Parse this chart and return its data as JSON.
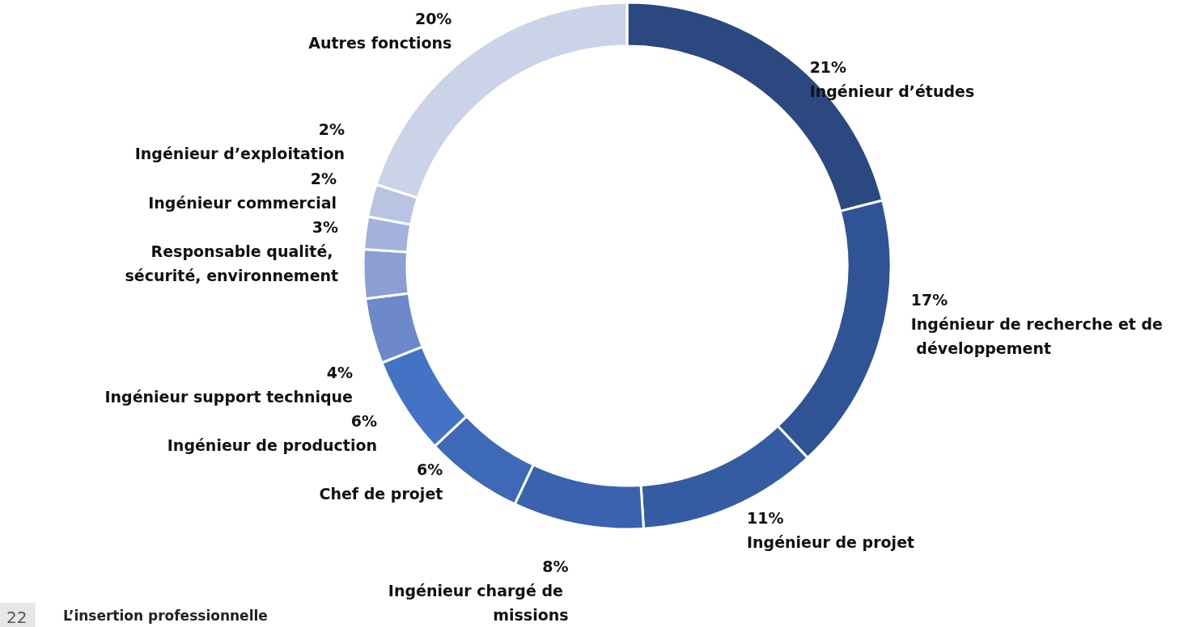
{
  "chart_data": {
    "type": "donut",
    "categories": [
      "Ingénieur d’études",
      "Ingénieur de recherche et de développement",
      "Ingénieur de projet",
      "Ingénieur chargé de missions",
      "Chef de projet",
      "Ingénieur de production",
      "Ingénieur support technique",
      "Responsable qualité, sécurité, environnement",
      "Ingénieur commercial",
      "Ingénieur d’exploitation",
      "Autres fonctions"
    ],
    "values": [
      21,
      17,
      11,
      8,
      6,
      6,
      4,
      3,
      2,
      2,
      20
    ],
    "value_labels": [
      "21%",
      "17%",
      "11%",
      "8%",
      "6%",
      "6%",
      "4%",
      "3%",
      "2%",
      "2%",
      "20%"
    ],
    "colors": [
      "#2b4880",
      "#2f5395",
      "#355ba3",
      "#3a62ae",
      "#3e69b9",
      "#4473c5",
      "#6e88cc",
      "#8b9fd4",
      "#a3b2dc",
      "#b9c4e2",
      "#cbd3e8"
    ],
    "legend": false,
    "annotations": [
      "22",
      "L’insertion professionnelle"
    ]
  }
}
